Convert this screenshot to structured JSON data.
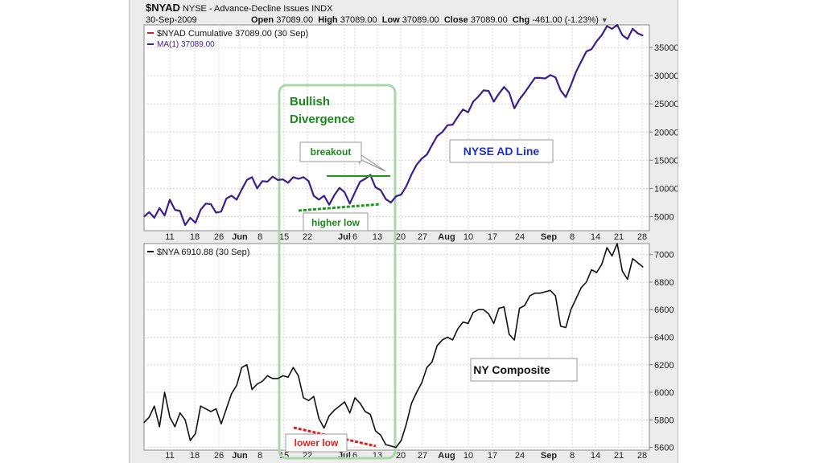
{
  "header": {
    "symbol": "$NYAD",
    "exchange": "NYSE - Advance-Decline Issues",
    "index": "INDX",
    "date": "30-Sep-2009",
    "open_label": "Open",
    "open_value": "37089.00",
    "high_label": "High",
    "high_value": "37089.00",
    "low_label": "Low",
    "low_value": "37089.00",
    "close_label": "Close",
    "close_value": "37089.00",
    "chg_label": "Chg",
    "chg_value": "-461.00 (-1.23%)"
  },
  "colors": {
    "ad_line": "#3a1f8c",
    "composite": "#111111",
    "divergence_box": "#a8d8a8",
    "divergence_text": "#1a8a1a",
    "breakout_line": "#1a9a1a",
    "higher_low": "#1a9a1a",
    "lower_low": "#e02020",
    "ad_label": "#1c2fd0"
  },
  "annotations": {
    "divergence_line1": "Bullish",
    "divergence_line2": "Divergence",
    "breakout": "breakout",
    "higher_low": "higher low",
    "lower_low": "lower low",
    "ad_line_label": "NYSE AD Line",
    "composite_label": "NY Composite"
  },
  "chart_data": [
    {
      "type": "line",
      "legend": [
        {
          "name": "$NYAD Cumulative 37089.00 (30 Sep)",
          "color": "#d02020"
        },
        {
          "name": "MA(1) 37089.00",
          "color": "#3a1f8c"
        }
      ],
      "x_ticks": [
        "11",
        "18",
        "26",
        "Jun",
        "8",
        "15",
        "22",
        "Jul",
        "6",
        "13",
        "20",
        "27",
        "Aug",
        "10",
        "17",
        "24",
        "Sep",
        "8",
        "14",
        "21",
        "28"
      ],
      "x_ticks_bold": [
        "Jun",
        "Jul",
        "Aug",
        "Sep"
      ],
      "y_ticks": [
        5000,
        10000,
        15000,
        20000,
        25000,
        30000,
        35000
      ],
      "ylim": [
        2500,
        39000
      ],
      "grid": true,
      "series": [
        {
          "name": "$NYAD Cumulative",
          "values": [
            5000,
            5800,
            4800,
            6500,
            5200,
            8000,
            6200,
            6000,
            3500,
            4800,
            3900,
            6200,
            7300,
            7200,
            5700,
            5900,
            8200,
            8700,
            8000,
            9800,
            11500,
            12000,
            10000,
            11300,
            11200,
            12100,
            11500,
            11600,
            11000,
            12000,
            11700,
            12000,
            11300,
            8700,
            8000,
            8700,
            7100,
            8800,
            10100,
            9300,
            7300,
            9300,
            11200,
            11700,
            12400,
            10200,
            9700,
            8100,
            7500,
            8600,
            8900,
            10400,
            12500,
            14200,
            15300,
            16000,
            17700,
            19300,
            20000,
            21200,
            21300,
            22700,
            24000,
            23500,
            25400,
            26300,
            27400,
            27300,
            25400,
            26800,
            28000,
            27000,
            24200,
            25800,
            27000,
            28300,
            29600,
            29600,
            29500,
            30100,
            29700,
            27400,
            26200,
            28300,
            30700,
            32500,
            34300,
            34700,
            36100,
            37200,
            38800,
            38300,
            39000,
            37200,
            36500,
            38300,
            37500,
            37100
          ]
        }
      ]
    },
    {
      "type": "line",
      "legend": [
        {
          "name": "$NYA 6910.88 (30 Sep)",
          "color": "#111111"
        }
      ],
      "x_ticks": [
        "11",
        "18",
        "26",
        "Jun",
        "8",
        "15",
        "22",
        "Jul",
        "6",
        "13",
        "20",
        "27",
        "Aug",
        "10",
        "17",
        "24",
        "Sep",
        "8",
        "14",
        "21",
        "28"
      ],
      "x_ticks_bold": [
        "Jun",
        "Jul",
        "Aug",
        "Sep"
      ],
      "y_ticks": [
        5600,
        5800,
        6000,
        6200,
        6400,
        6600,
        6800,
        7000
      ],
      "ylim": [
        5580,
        7080
      ],
      "grid": true,
      "series": [
        {
          "name": "$NYA",
          "values": [
            5780,
            5820,
            5900,
            5750,
            6000,
            5820,
            5750,
            5850,
            5800,
            5650,
            5700,
            5900,
            5880,
            5860,
            5880,
            5770,
            5880,
            5990,
            6050,
            6180,
            6200,
            6020,
            6060,
            6080,
            6120,
            6100,
            6100,
            6120,
            6110,
            6180,
            6120,
            5960,
            5940,
            5970,
            5810,
            5740,
            5830,
            5870,
            5900,
            5930,
            5850,
            5960,
            5920,
            5860,
            5840,
            5720,
            5690,
            5620,
            5610,
            5600,
            5650,
            5770,
            5920,
            6000,
            6070,
            6180,
            6220,
            6340,
            6380,
            6400,
            6380,
            6460,
            6510,
            6500,
            6580,
            6600,
            6600,
            6570,
            6500,
            6610,
            6620,
            6420,
            6380,
            6610,
            6630,
            6700,
            6720,
            6720,
            6730,
            6740,
            6700,
            6480,
            6470,
            6600,
            6680,
            6760,
            6800,
            6890,
            6870,
            6930,
            7050,
            6990,
            7080,
            6880,
            6820,
            6970,
            6940,
            6910
          ]
        }
      ]
    }
  ]
}
